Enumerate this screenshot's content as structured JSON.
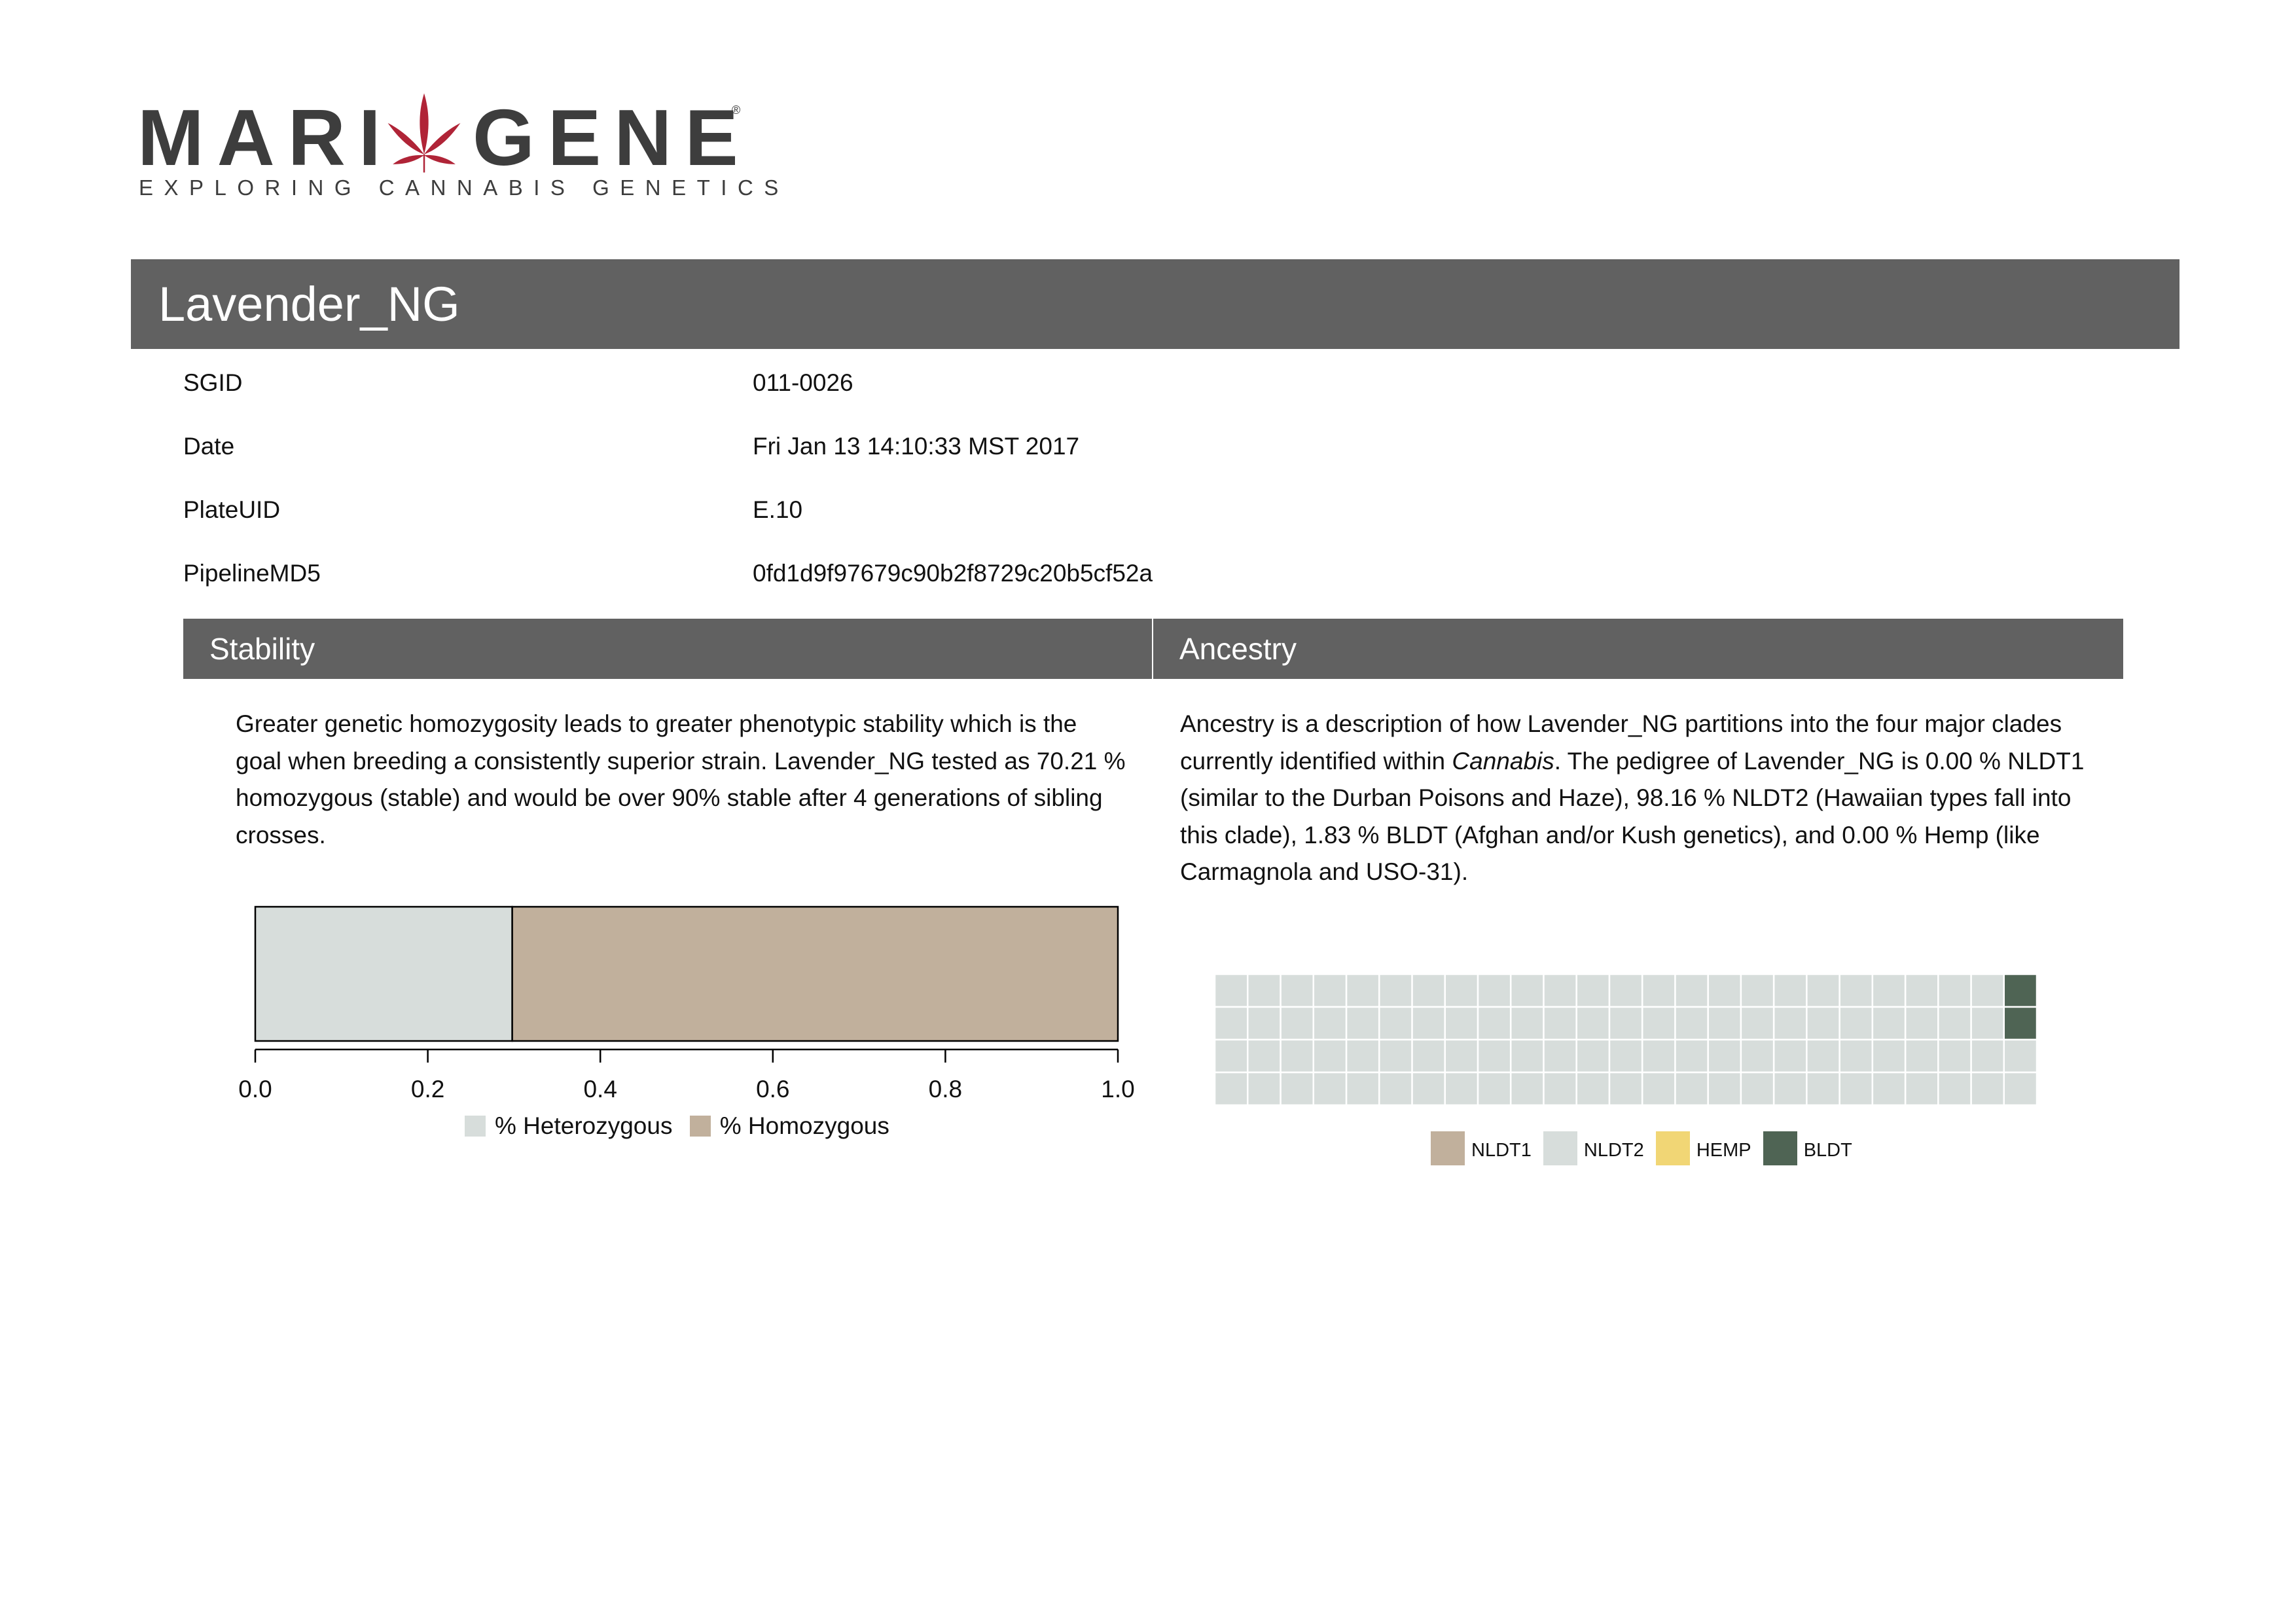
{
  "logo": {
    "left_word": "MARI",
    "right_word": "GENE",
    "registered_mark": "®",
    "tagline": "EXPLORING CANNABIS GENETICS",
    "leaf_color": "#b02437",
    "text_color": "#3d3d3d"
  },
  "report": {
    "title": "Lavender_NG",
    "meta": [
      {
        "key": "SGID",
        "value": "011-0026"
      },
      {
        "key": "Date",
        "value": "Fri Jan 13 14:10:33 MST 2017"
      },
      {
        "key": "PlateUID",
        "value": "E.10"
      },
      {
        "key": "PipelineMD5",
        "value": "0fd1d9f97679c90b2f8729c20b5cf52a"
      }
    ]
  },
  "stability": {
    "header": "Stability",
    "paragraph": "Greater genetic homozygosity leads to greater phenotypic stability which is the goal when breeding a consistently superior strain. Lavender_NG tested as 70.21 % homozygous (stable) and would be over 90% stable after 4 generations of sibling crosses."
  },
  "ancestry": {
    "header": "Ancestry",
    "paragraph_before": "Ancestry is a description of how Lavender_NG partitions into the four major clades currently identified within ",
    "paragraph_italic": "Cannabis",
    "paragraph_after": ". The pedigree of Lavender_NG is 0.00 % NLDT1 (similar to the Durban Poisons and Haze), 98.16 % NLDT2 (Hawaiian types fall into this clade), 1.83 % BLDT (Afghan and/or Kush genetics), and 0.00 % Hemp (like Carmagnola and USO-31)."
  },
  "chart_data": [
    {
      "type": "bar",
      "orientation": "horizontal-stacked",
      "series": [
        {
          "name": "% Heterozygous",
          "value": 0.2979,
          "color": "#d7dddb"
        },
        {
          "name": "% Homozygous",
          "value": 0.7021,
          "color": "#c1b09c"
        }
      ],
      "xlim": [
        0,
        1
      ],
      "x_ticks": [
        "0.0",
        "0.2",
        "0.4",
        "0.6",
        "0.8",
        "1.0"
      ],
      "legend": "bottom"
    },
    {
      "type": "heatmap",
      "subtype": "waffle",
      "grid": {
        "columns": 25,
        "rows": 4
      },
      "categories": [
        {
          "name": "NLDT1",
          "value": 0.0,
          "cells": 0,
          "color": "#c1b09c"
        },
        {
          "name": "NLDT2",
          "value": 98.16,
          "cells": 98,
          "color": "#d7dddb"
        },
        {
          "name": "HEMP",
          "value": 0.0,
          "cells": 0,
          "color": "#f1d675"
        },
        {
          "name": "BLDT",
          "value": 1.83,
          "cells": 2,
          "color": "#4f6454"
        }
      ],
      "legend": "bottom"
    }
  ]
}
